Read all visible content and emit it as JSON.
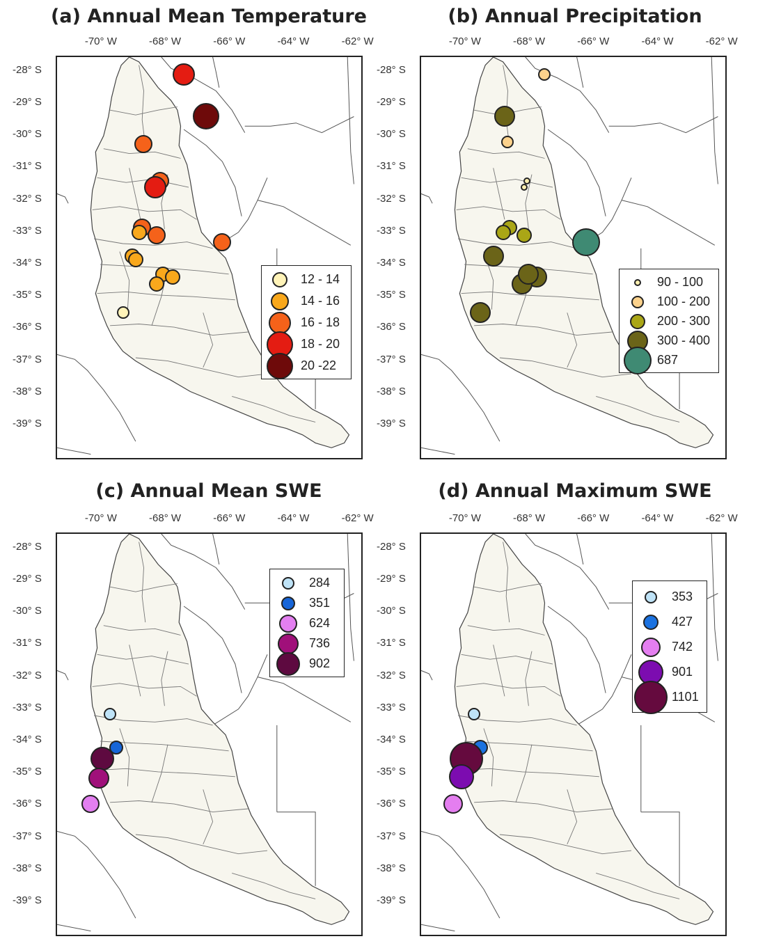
{
  "figure": {
    "x_ticks": [
      "-70° W",
      "-68° W",
      "-66° W",
      "-64° W",
      "-62° W"
    ],
    "y_ticks": [
      "-28° S",
      "-29° S",
      "-30° S",
      "-31° S",
      "-32° S",
      "-33° S",
      "-34° S",
      "-35° S",
      "-36° S",
      "-37° S",
      "-38° S",
      "-39° S"
    ]
  },
  "panels": [
    {
      "id": "a",
      "title": "(a)  Annual Mean Temperature",
      "legend": [
        {
          "label": "12 - 14",
          "color": "#fff3b8",
          "size": 1
        },
        {
          "label": "14 - 16",
          "color": "#f9a81c",
          "size": 2
        },
        {
          "label": "16 - 18",
          "color": "#f5621a",
          "size": 3
        },
        {
          "label": "18 - 20",
          "color": "#e41c12",
          "size": 4
        },
        {
          "label": "20 -22",
          "color": "#6e0a0a",
          "size": 5
        }
      ],
      "stations": [
        {
          "lon": -67.5,
          "lat": -28.1,
          "cls": 3
        },
        {
          "lon": -66.8,
          "lat": -29.4,
          "cls": 4
        },
        {
          "lon": -68.75,
          "lat": -30.25,
          "cls": 2
        },
        {
          "lon": -68.25,
          "lat": -31.4,
          "cls": 2
        },
        {
          "lon": -68.4,
          "lat": -31.6,
          "cls": 3
        },
        {
          "lon": -68.8,
          "lat": -32.85,
          "cls": 2
        },
        {
          "lon": -68.9,
          "lat": -33.0,
          "cls": 1
        },
        {
          "lon": -68.35,
          "lat": -33.1,
          "cls": 2
        },
        {
          "lon": -66.3,
          "lat": -33.3,
          "cls": 2
        },
        {
          "lon": -69.1,
          "lat": -33.75,
          "cls": 1
        },
        {
          "lon": -69.0,
          "lat": -33.85,
          "cls": 1
        },
        {
          "lon": -68.15,
          "lat": -34.3,
          "cls": 1
        },
        {
          "lon": -67.85,
          "lat": -34.4,
          "cls": 1
        },
        {
          "lon": -68.35,
          "lat": -34.6,
          "cls": 1
        },
        {
          "lon": -69.4,
          "lat": -35.5,
          "cls": 0
        }
      ]
    },
    {
      "id": "b",
      "title": "(b)  Annual Precipitation",
      "legend": [
        {
          "label": "90 - 100",
          "color": "#fff0b0",
          "size": 0
        },
        {
          "label": "100 - 200",
          "color": "#fcd28c",
          "size": 1
        },
        {
          "label": "200 - 300",
          "color": "#aaa616",
          "size": 2
        },
        {
          "label": "300 - 400",
          "color": "#6b6418",
          "size": 3
        },
        {
          "label": "687",
          "color": "#3f8a73",
          "size": 4
        }
      ],
      "stations": [
        {
          "lon": -67.6,
          "lat": -28.1,
          "cls": 1
        },
        {
          "lon": -68.85,
          "lat": -29.4,
          "cls": 3
        },
        {
          "lon": -68.75,
          "lat": -30.2,
          "cls": 1
        },
        {
          "lon": -68.15,
          "lat": -31.4,
          "cls": 0
        },
        {
          "lon": -68.25,
          "lat": -31.6,
          "cls": 0
        },
        {
          "lon": -68.7,
          "lat": -32.85,
          "cls": 2
        },
        {
          "lon": -68.9,
          "lat": -33.0,
          "cls": 2
        },
        {
          "lon": -68.25,
          "lat": -33.1,
          "cls": 2
        },
        {
          "lon": -66.3,
          "lat": -33.3,
          "cls": 4
        },
        {
          "lon": -69.2,
          "lat": -33.75,
          "cls": 3
        },
        {
          "lon": -67.85,
          "lat": -34.4,
          "cls": 3
        },
        {
          "lon": -68.3,
          "lat": -34.6,
          "cls": 3
        },
        {
          "lon": -68.1,
          "lat": -34.3,
          "cls": 3
        },
        {
          "lon": -69.6,
          "lat": -35.5,
          "cls": 3
        }
      ]
    },
    {
      "id": "c",
      "title": "(c)  Annual Mean SWE",
      "legend": [
        {
          "label": "284",
          "color": "#bfe3f7",
          "size": 0
        },
        {
          "label": "351",
          "color": "#1665d8",
          "size": 1
        },
        {
          "label": "624",
          "color": "#e37ff0",
          "size": 2
        },
        {
          "label": "736",
          "color": "#a0107a",
          "size": 3
        },
        {
          "label": "902",
          "color": "#5e0a40",
          "size": 4
        }
      ],
      "stations": [
        {
          "lon": -69.8,
          "lat": -33.15,
          "cls": 0
        },
        {
          "lon": -69.6,
          "lat": -34.2,
          "cls": 1
        },
        {
          "lon": -70.05,
          "lat": -34.55,
          "cls": 4
        },
        {
          "lon": -70.15,
          "lat": -35.15,
          "cls": 3
        },
        {
          "lon": -70.4,
          "lat": -35.95,
          "cls": 2
        }
      ]
    },
    {
      "id": "d",
      "title": "(d)  Annual Maximum SWE",
      "legend": [
        {
          "label": "353",
          "color": "#bfe3f7",
          "size": 0
        },
        {
          "label": "427",
          "color": "#1b72e0",
          "size": 1
        },
        {
          "label": "742",
          "color": "#e47ef0",
          "size": 2
        },
        {
          "label": "901",
          "color": "#7c0cb0",
          "size": 3
        },
        {
          "label": "1101",
          "color": "#650a3e",
          "size": 4
        }
      ],
      "stations": [
        {
          "lon": -69.8,
          "lat": -33.15,
          "cls": 0
        },
        {
          "lon": -69.6,
          "lat": -34.2,
          "cls": 1
        },
        {
          "lon": -70.05,
          "lat": -34.55,
          "cls": 4
        },
        {
          "lon": -70.2,
          "lat": -35.1,
          "cls": 3
        },
        {
          "lon": -70.45,
          "lat": -35.95,
          "cls": 2
        }
      ]
    }
  ]
}
